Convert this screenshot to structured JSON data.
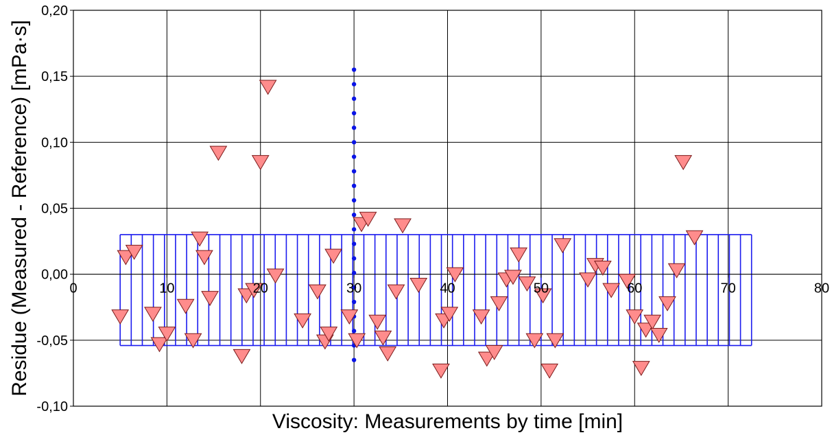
{
  "chart_data": {
    "type": "scatter",
    "title": "",
    "xlabel": "Viscosity: Measurements by time [min]",
    "ylabel": "Residue (Measured - Reference) [mPa·s]",
    "xlim": [
      0,
      80
    ],
    "ylim": [
      -0.1,
      0.2
    ],
    "x_ticks": [
      0,
      10,
      20,
      30,
      40,
      50,
      60,
      70,
      80
    ],
    "x_tick_labels": [
      "0",
      "10",
      "20",
      "30",
      "40",
      "50",
      "60",
      "70",
      "80"
    ],
    "y_ticks": [
      -0.1,
      -0.05,
      0.0,
      0.05,
      0.1,
      0.15,
      0.2
    ],
    "y_tick_labels": [
      "-0,10",
      "-0,05",
      "0,00",
      "0,05",
      "0,10",
      "0,15",
      "0,20"
    ],
    "grid": true,
    "colors": {
      "marker_fill": "#ff8c8c",
      "marker_stroke": "#7a1a1a",
      "band": "#1a1aee",
      "vline_dots": "#0a14e6",
      "grid": "#000000"
    },
    "band": {
      "x_start": 5,
      "x_end": 72.5,
      "upper": 0.03,
      "lower": -0.054,
      "line_count": 58
    },
    "vertical_dot_line": {
      "x": 30,
      "y_values": [
        0.155,
        0.144,
        0.133,
        0.122,
        0.111,
        0.1,
        0.089,
        0.078,
        0.067,
        0.056,
        0.045,
        0.034,
        0.023,
        0.012,
        0.001,
        -0.01,
        -0.021,
        -0.032,
        -0.043,
        -0.054,
        -0.065
      ]
    },
    "series": [
      {
        "marker": "triangle-down",
        "points": [
          {
            "x": 5.0,
            "y": -0.032
          },
          {
            "x": 5.6,
            "y": 0.013
          },
          {
            "x": 6.5,
            "y": 0.017
          },
          {
            "x": 8.5,
            "y": -0.03
          },
          {
            "x": 9.2,
            "y": -0.053
          },
          {
            "x": 10.0,
            "y": -0.045
          },
          {
            "x": 12.0,
            "y": -0.024
          },
          {
            "x": 12.8,
            "y": -0.05
          },
          {
            "x": 13.5,
            "y": 0.027
          },
          {
            "x": 14.0,
            "y": 0.013
          },
          {
            "x": 14.6,
            "y": -0.018
          },
          {
            "x": 15.5,
            "y": 0.092
          },
          {
            "x": 18.0,
            "y": -0.062
          },
          {
            "x": 18.5,
            "y": -0.016
          },
          {
            "x": 19.3,
            "y": -0.012
          },
          {
            "x": 20.0,
            "y": 0.085
          },
          {
            "x": 20.8,
            "y": 0.142
          },
          {
            "x": 21.6,
            "y": -0.001
          },
          {
            "x": 24.5,
            "y": -0.035
          },
          {
            "x": 26.1,
            "y": -0.013
          },
          {
            "x": 26.9,
            "y": -0.051
          },
          {
            "x": 27.3,
            "y": -0.045
          },
          {
            "x": 27.8,
            "y": 0.014
          },
          {
            "x": 29.5,
            "y": -0.032
          },
          {
            "x": 30.3,
            "y": -0.05
          },
          {
            "x": 30.8,
            "y": 0.038
          },
          {
            "x": 31.5,
            "y": 0.042
          },
          {
            "x": 32.5,
            "y": -0.036
          },
          {
            "x": 33.1,
            "y": -0.048
          },
          {
            "x": 33.6,
            "y": -0.06
          },
          {
            "x": 34.5,
            "y": -0.013
          },
          {
            "x": 35.2,
            "y": 0.037
          },
          {
            "x": 36.9,
            "y": -0.008
          },
          {
            "x": 39.3,
            "y": -0.073
          },
          {
            "x": 39.6,
            "y": -0.035
          },
          {
            "x": 40.2,
            "y": -0.03
          },
          {
            "x": 40.8,
            "y": 0.0
          },
          {
            "x": 43.6,
            "y": -0.032
          },
          {
            "x": 44.2,
            "y": -0.064
          },
          {
            "x": 45.0,
            "y": -0.059
          },
          {
            "x": 45.5,
            "y": -0.022
          },
          {
            "x": 46.3,
            "y": -0.004
          },
          {
            "x": 47.0,
            "y": -0.002
          },
          {
            "x": 47.6,
            "y": 0.015
          },
          {
            "x": 48.5,
            "y": -0.007
          },
          {
            "x": 49.3,
            "y": -0.05
          },
          {
            "x": 50.2,
            "y": -0.016
          },
          {
            "x": 50.9,
            "y": -0.073
          },
          {
            "x": 51.5,
            "y": -0.05
          },
          {
            "x": 52.3,
            "y": 0.022
          },
          {
            "x": 55.0,
            "y": -0.004
          },
          {
            "x": 55.8,
            "y": 0.007
          },
          {
            "x": 56.6,
            "y": 0.005
          },
          {
            "x": 57.5,
            "y": -0.012
          },
          {
            "x": 59.2,
            "y": -0.005
          },
          {
            "x": 60.0,
            "y": -0.032
          },
          {
            "x": 60.7,
            "y": -0.071
          },
          {
            "x": 61.2,
            "y": -0.042
          },
          {
            "x": 61.9,
            "y": -0.036
          },
          {
            "x": 62.6,
            "y": -0.046
          },
          {
            "x": 63.5,
            "y": -0.022
          },
          {
            "x": 64.5,
            "y": 0.003
          },
          {
            "x": 65.2,
            "y": 0.085
          },
          {
            "x": 66.4,
            "y": 0.028
          }
        ]
      }
    ]
  }
}
